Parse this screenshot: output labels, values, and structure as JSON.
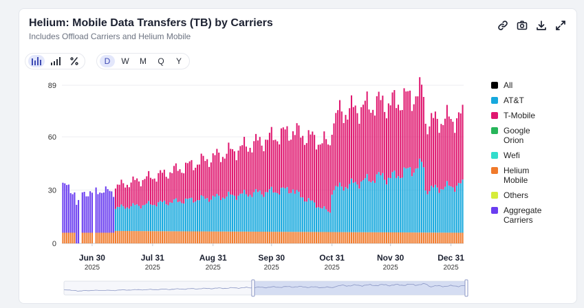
{
  "header": {
    "title": "Helium: Mobile Data Transfers (TB) by Carriers",
    "subtitle": "Includes Offload Carriers and Helium Mobile"
  },
  "icons": [
    "link-icon",
    "camera-icon",
    "download-icon",
    "expand-icon"
  ],
  "chart_types": [
    "bar-chart-icon",
    "stacked-bar-icon",
    "percent-icon"
  ],
  "periods": [
    "D",
    "W",
    "M",
    "Q",
    "Y"
  ],
  "selected_period": "D",
  "colors": {
    "All": "#000000",
    "AT&T": "#16a8dd",
    "T-Mobile": "#df176f",
    "Google Orion": "#27b55a",
    "Wefi": "#33dccb",
    "Helium Mobile": "#f07a2b",
    "Others": "#d6ec3a",
    "Aggregate Carriers": "#6a3df0",
    "accent": "#3d4ab3"
  },
  "chart_data": {
    "type": "bar",
    "stacked": true,
    "title": "Helium: Mobile Data Transfers (TB) by Carriers",
    "subtitle": "Includes Offload Carriers and Helium Mobile",
    "ylim": [
      0,
      89
    ],
    "yticks": [
      0,
      30,
      60,
      89
    ],
    "xticks": [
      {
        "label": "Jun 30",
        "year": "2025",
        "day": 15
      },
      {
        "label": "Jul 31",
        "year": "2025",
        "day": 46
      },
      {
        "label": "Aug 31",
        "year": "2025",
        "day": 77
      },
      {
        "label": "Sep 30",
        "year": "2025",
        "day": 107
      },
      {
        "label": "Oct 31",
        "year": "2025",
        "day": 138
      },
      {
        "label": "Nov 30",
        "year": "2025",
        "day": 168
      },
      {
        "label": "Dec 31",
        "year": "2025",
        "day": 199
      }
    ],
    "legend": [
      "All",
      "AT&T",
      "T-Mobile",
      "Google Orion",
      "Wefi",
      "Helium Mobile",
      "Others",
      "Aggregate Carriers"
    ],
    "first_date": "2025-06-15",
    "total_days": 206,
    "gap_days": [
      9,
      16
    ],
    "series": [
      {
        "name": "Aggregate Carriers",
        "segments": [
          {
            "from": 0,
            "to": 3,
            "start": 27,
            "end": 25
          },
          {
            "from": 4,
            "to": 9,
            "start": 24,
            "end": 22
          },
          {
            "from": 10,
            "to": 15,
            "start": 23,
            "end": 22
          },
          {
            "from": 16,
            "to": 26,
            "start": 24,
            "end": 23
          }
        ]
      },
      {
        "name": "Helium Mobile",
        "segments": [
          {
            "from": 0,
            "to": 6,
            "start": 6,
            "end": 6
          },
          {
            "from": 10,
            "to": 26,
            "start": 6,
            "end": 6
          },
          {
            "from": 27,
            "to": 205,
            "start": 7,
            "end": 6
          }
        ]
      },
      {
        "name": "AT&T",
        "segments": [
          {
            "from": 27,
            "to": 118,
            "start": 13,
            "end": 24
          },
          {
            "from": 119,
            "to": 137,
            "start": 22,
            "end": 11
          },
          {
            "from": 138,
            "to": 165,
            "start": 24,
            "end": 32
          },
          {
            "from": 166,
            "to": 185,
            "start": 30,
            "end": 38
          },
          {
            "from": 186,
            "to": 205,
            "start": 24,
            "end": 27
          }
        ]
      },
      {
        "name": "T-Mobile",
        "segments": [
          {
            "from": 27,
            "to": 50,
            "start": 12,
            "end": 16
          },
          {
            "from": 51,
            "to": 118,
            "start": 16,
            "end": 33
          },
          {
            "from": 119,
            "to": 140,
            "start": 34,
            "end": 39
          },
          {
            "from": 141,
            "to": 185,
            "start": 42,
            "end": 41
          },
          {
            "from": 186,
            "to": 205,
            "start": 38,
            "end": 38
          }
        ]
      }
    ]
  }
}
